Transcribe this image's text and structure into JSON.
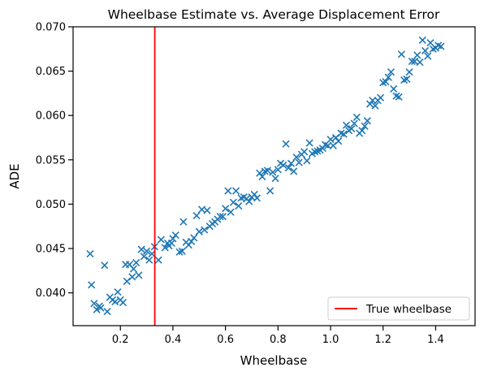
{
  "chart_data": {
    "type": "scatter",
    "title": "Wheelbase Estimate vs. Average Displacement Error",
    "xlabel": "Wheelbase",
    "ylabel": "ADE",
    "xlim": [
      0.02,
      1.55
    ],
    "ylim": [
      0.0363,
      0.07
    ],
    "xticks": [
      0.2,
      0.4,
      0.6,
      0.8,
      1.0,
      1.2,
      1.4
    ],
    "xtick_labels": [
      "0.2",
      "0.4",
      "0.6",
      "0.8",
      "1.0",
      "1.2",
      "1.4"
    ],
    "yticks": [
      0.04,
      0.045,
      0.05,
      0.055,
      0.06,
      0.065,
      0.07
    ],
    "ytick_labels": [
      "0.040",
      "0.045",
      "0.050",
      "0.055",
      "0.060",
      "0.065",
      "0.070"
    ],
    "grid": false,
    "legend_position": "bottom-right",
    "marker": "x",
    "series": [
      {
        "color": "#1f77b4",
        "points": [
          [
            0.085,
            0.0444
          ],
          [
            0.09,
            0.0409
          ],
          [
            0.1,
            0.0388
          ],
          [
            0.11,
            0.0381
          ],
          [
            0.12,
            0.0385
          ],
          [
            0.125,
            0.0383
          ],
          [
            0.14,
            0.0431
          ],
          [
            0.15,
            0.0379
          ],
          [
            0.16,
            0.0395
          ],
          [
            0.17,
            0.0392
          ],
          [
            0.18,
            0.039
          ],
          [
            0.19,
            0.0401
          ],
          [
            0.2,
            0.0392
          ],
          [
            0.21,
            0.0389
          ],
          [
            0.22,
            0.0432
          ],
          [
            0.225,
            0.0413
          ],
          [
            0.235,
            0.0432
          ],
          [
            0.245,
            0.0418
          ],
          [
            0.25,
            0.0427
          ],
          [
            0.26,
            0.0434
          ],
          [
            0.27,
            0.042
          ],
          [
            0.28,
            0.0449
          ],
          [
            0.29,
            0.0441
          ],
          [
            0.3,
            0.0447
          ],
          [
            0.31,
            0.0437
          ],
          [
            0.32,
            0.0444
          ],
          [
            0.33,
            0.0452
          ],
          [
            0.345,
            0.0437
          ],
          [
            0.355,
            0.046
          ],
          [
            0.37,
            0.0451
          ],
          [
            0.38,
            0.0456
          ],
          [
            0.385,
            0.0453
          ],
          [
            0.395,
            0.0456
          ],
          [
            0.4,
            0.0461
          ],
          [
            0.41,
            0.0465
          ],
          [
            0.425,
            0.0446
          ],
          [
            0.435,
            0.0447
          ],
          [
            0.44,
            0.048
          ],
          [
            0.45,
            0.0457
          ],
          [
            0.46,
            0.0454
          ],
          [
            0.47,
            0.0458
          ],
          [
            0.48,
            0.0462
          ],
          [
            0.49,
            0.0487
          ],
          [
            0.5,
            0.0469
          ],
          [
            0.51,
            0.0494
          ],
          [
            0.52,
            0.0471
          ],
          [
            0.53,
            0.0493
          ],
          [
            0.54,
            0.0475
          ],
          [
            0.55,
            0.0478
          ],
          [
            0.56,
            0.048
          ],
          [
            0.57,
            0.0483
          ],
          [
            0.58,
            0.0486
          ],
          [
            0.59,
            0.0486
          ],
          [
            0.6,
            0.0495
          ],
          [
            0.61,
            0.0515
          ],
          [
            0.62,
            0.0491
          ],
          [
            0.63,
            0.0502
          ],
          [
            0.64,
            0.0515
          ],
          [
            0.65,
            0.0498
          ],
          [
            0.66,
            0.0507
          ],
          [
            0.67,
            0.0508
          ],
          [
            0.68,
            0.0506
          ],
          [
            0.69,
            0.0503
          ],
          [
            0.7,
            0.0508
          ],
          [
            0.71,
            0.0511
          ],
          [
            0.72,
            0.0507
          ],
          [
            0.73,
            0.0535
          ],
          [
            0.74,
            0.0531
          ],
          [
            0.75,
            0.0537
          ],
          [
            0.76,
            0.0538
          ],
          [
            0.77,
            0.0515
          ],
          [
            0.78,
            0.0536
          ],
          [
            0.79,
            0.0529
          ],
          [
            0.8,
            0.0539
          ],
          [
            0.81,
            0.0546
          ],
          [
            0.82,
            0.0544
          ],
          [
            0.83,
            0.0568
          ],
          [
            0.84,
            0.0541
          ],
          [
            0.85,
            0.0546
          ],
          [
            0.86,
            0.0537
          ],
          [
            0.87,
            0.0553
          ],
          [
            0.88,
            0.0547
          ],
          [
            0.89,
            0.0556
          ],
          [
            0.9,
            0.0559
          ],
          [
            0.91,
            0.0549
          ],
          [
            0.92,
            0.0569
          ],
          [
            0.93,
            0.0557
          ],
          [
            0.94,
            0.0559
          ],
          [
            0.95,
            0.056
          ],
          [
            0.96,
            0.0561
          ],
          [
            0.97,
            0.0563
          ],
          [
            0.98,
            0.0567
          ],
          [
            0.99,
            0.0566
          ],
          [
            1.0,
            0.0573
          ],
          [
            1.01,
            0.0566
          ],
          [
            1.02,
            0.0575
          ],
          [
            1.03,
            0.0571
          ],
          [
            1.04,
            0.058
          ],
          [
            1.05,
            0.0579
          ],
          [
            1.06,
            0.0589
          ],
          [
            1.07,
            0.0583
          ],
          [
            1.08,
            0.0585
          ],
          [
            1.09,
            0.0591
          ],
          [
            1.1,
            0.0598
          ],
          [
            1.11,
            0.058
          ],
          [
            1.12,
            0.0583
          ],
          [
            1.13,
            0.0588
          ],
          [
            1.14,
            0.0594
          ],
          [
            1.15,
            0.0613
          ],
          [
            1.16,
            0.0617
          ],
          [
            1.17,
            0.0611
          ],
          [
            1.18,
            0.0617
          ],
          [
            1.19,
            0.062
          ],
          [
            1.2,
            0.0637
          ],
          [
            1.21,
            0.0638
          ],
          [
            1.22,
            0.0643
          ],
          [
            1.23,
            0.0649
          ],
          [
            1.24,
            0.063
          ],
          [
            1.25,
            0.0622
          ],
          [
            1.26,
            0.0621
          ],
          [
            1.27,
            0.0669
          ],
          [
            1.28,
            0.064
          ],
          [
            1.29,
            0.0641
          ],
          [
            1.3,
            0.0649
          ],
          [
            1.31,
            0.0661
          ],
          [
            1.32,
            0.0661
          ],
          [
            1.33,
            0.0668
          ],
          [
            1.34,
            0.066
          ],
          [
            1.35,
            0.0685
          ],
          [
            1.36,
            0.0673
          ],
          [
            1.37,
            0.0667
          ],
          [
            1.38,
            0.0682
          ],
          [
            1.39,
            0.0675
          ],
          [
            1.4,
            0.0676
          ],
          [
            1.41,
            0.0679
          ],
          [
            1.42,
            0.0678
          ]
        ]
      }
    ],
    "vlines": [
      {
        "label": "True wheelbase",
        "x": 0.331,
        "color": "#ff0000"
      }
    ]
  }
}
